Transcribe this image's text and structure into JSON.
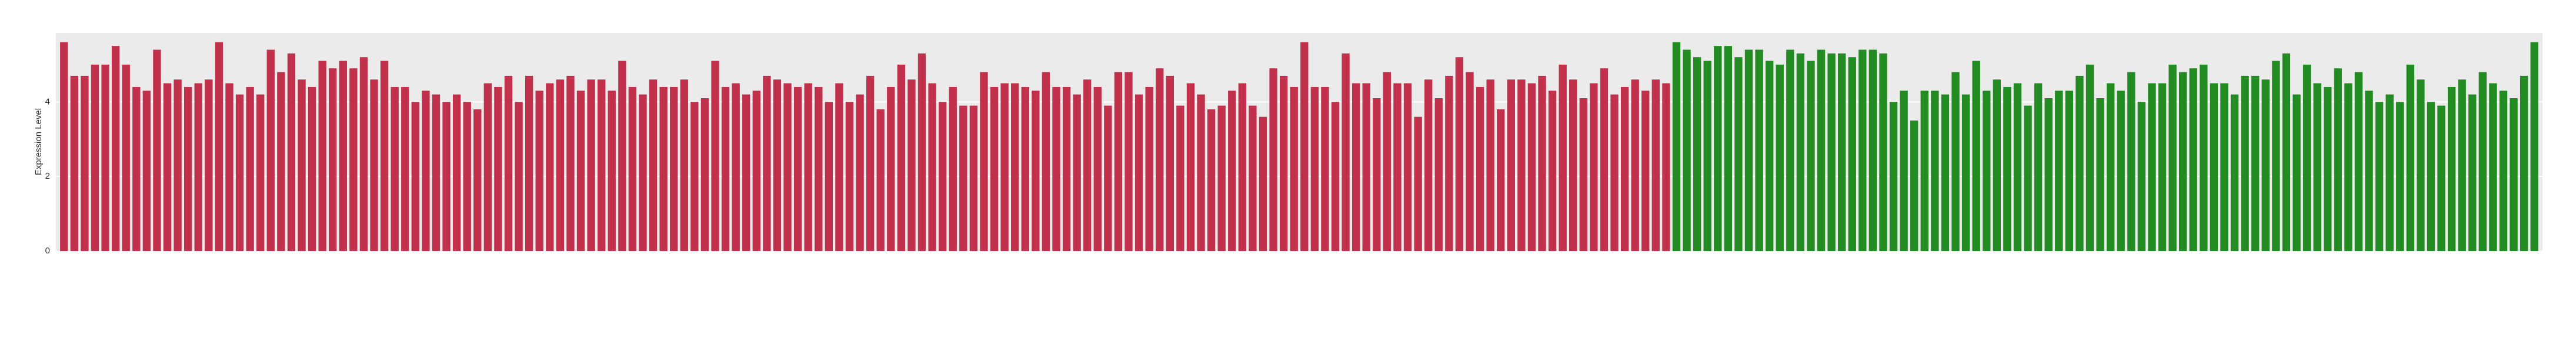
{
  "chart_data": {
    "type": "bar",
    "y_label": "Expression Level",
    "ylim": [
      0,
      5.85
    ],
    "yticks": [
      0,
      2,
      4
    ],
    "grid": true,
    "series": [
      {
        "color": "#c2314b",
        "values": [
          5.6,
          4.7,
          4.7,
          5.0,
          5.0,
          5.5,
          5.0,
          4.4,
          4.3,
          5.4,
          4.5,
          4.6,
          4.4,
          4.5,
          4.6,
          5.6,
          4.5,
          4.2,
          4.4,
          4.2,
          5.4,
          4.8,
          5.3,
          4.6,
          4.4,
          5.1,
          4.9,
          5.1,
          4.9,
          5.2,
          4.6,
          5.1,
          4.4,
          4.4,
          4.0,
          4.3,
          4.2,
          4.0,
          4.2,
          4.0,
          3.8,
          4.5,
          4.4,
          4.7,
          4.0,
          4.7,
          4.3,
          4.5,
          4.6,
          4.7,
          4.3,
          4.6,
          4.6,
          4.3,
          5.1,
          4.4,
          4.2,
          4.6,
          4.4,
          4.4,
          4.6,
          4.0,
          4.1,
          5.1,
          4.4,
          4.5,
          4.2,
          4.3,
          4.7,
          4.6,
          4.5,
          4.4,
          4.5,
          4.4,
          4.0,
          4.5,
          4.0,
          4.2,
          4.7,
          3.8,
          4.4,
          5.0,
          4.6,
          5.3,
          4.5,
          4.0,
          4.4,
          3.9,
          3.9,
          4.8,
          4.4,
          4.5,
          4.5,
          4.4,
          4.3,
          4.8,
          4.4,
          4.4,
          4.2,
          4.6,
          4.4,
          3.9,
          4.8,
          4.8,
          4.2,
          4.4,
          4.9,
          4.7,
          3.9,
          4.5,
          4.2,
          3.8,
          3.9,
          4.3,
          4.5,
          3.9,
          3.6,
          4.9,
          4.7,
          4.4,
          5.6,
          4.4,
          4.4,
          4.0,
          5.3,
          4.5,
          4.5,
          4.1,
          4.8,
          4.5,
          4.5,
          3.6,
          4.6,
          4.1,
          4.7,
          5.2,
          4.8,
          4.4,
          4.6,
          3.8,
          4.6,
          4.6,
          4.5,
          4.7,
          4.3,
          5.0,
          4.6,
          4.1,
          4.5,
          4.9,
          4.2,
          4.4,
          4.6,
          4.3,
          4.6,
          4.5
        ]
      },
      {
        "color": "#228b22",
        "values": [
          5.6,
          5.4,
          5.2,
          5.1,
          5.5,
          5.5,
          5.2,
          5.4,
          5.4,
          5.1,
          5.0,
          5.4,
          5.3,
          5.1,
          5.4,
          5.3,
          5.3,
          5.2,
          5.4,
          5.4,
          5.3,
          4.0,
          4.3,
          3.5,
          4.3,
          4.3,
          4.2,
          4.8,
          4.2,
          5.1,
          4.3,
          4.6,
          4.4,
          4.5,
          3.9,
          4.5,
          4.1,
          4.3,
          4.3,
          4.7,
          5.0,
          4.1,
          4.5,
          4.3,
          4.8,
          4.0,
          4.5,
          4.5,
          5.0,
          4.8,
          4.9,
          5.0,
          4.5,
          4.5,
          4.2,
          4.7,
          4.7,
          4.6,
          5.1,
          5.3,
          4.2,
          5.0,
          4.5,
          4.4,
          4.9,
          4.5,
          4.8,
          4.3,
          4.0,
          4.2,
          4.0,
          5.0,
          4.6,
          4.0,
          3.9,
          4.4,
          4.6,
          4.2,
          4.8,
          4.5,
          4.3,
          4.1,
          4.7,
          5.6
        ]
      }
    ]
  }
}
